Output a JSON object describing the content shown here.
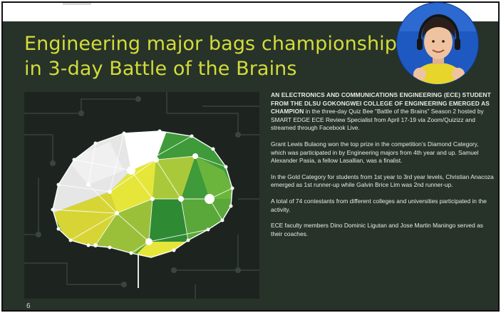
{
  "title_lines": [
    "Engineering major bags championship",
    "in 3-day Battle of the Brains"
  ],
  "article": {
    "lead": "AN ELECTRONICS AND COMMUNICATIONS ENGINEERING (ECE) STUDENT FROM THE DLSU GOKONGWEI COLLEGE OF ENGINEERING EMERGED AS CHAMPION",
    "p1_rest": " in the three-day Quiz Bee “Battle of the Brains” Season 2 hosted by SMART EDGE ECE Review Specialist from April 17-19 via Zoom/Quizizz and streamed through Facebook Live.",
    "p2": "Grant Lewis Bulaong won the top prize in the competition’s Diamond Category, which was participated in by Engineering majors from 4th year and up. Samuel Alexander Pasia, a fellow Lasallian, was a finalist.",
    "p3": "In the Gold Category for students from 1st year to 3rd year levels, Christian Anacoza emerged as 1st runner-up while Galvin Brice Lim was 2nd runner-up.",
    "p4": "A total of 74 contestants from different colleges and universities participated in the activity.",
    "p5": "ECE faculty members Dino Dominic Ligutan and Jose Martin Maningo served as their coaches."
  },
  "page_number": "6",
  "colors": {
    "background": "#273229",
    "title": "#d2dc3a",
    "brain_yellow": "#e6e63a",
    "brain_green": "#3f9a3a",
    "webcam_bg": "#1e59c2",
    "webcam_shirt": "#e8d52b"
  },
  "icons": {
    "illustration": "polygon-brain-network",
    "webcam": "presenter-webcam-overlay"
  }
}
